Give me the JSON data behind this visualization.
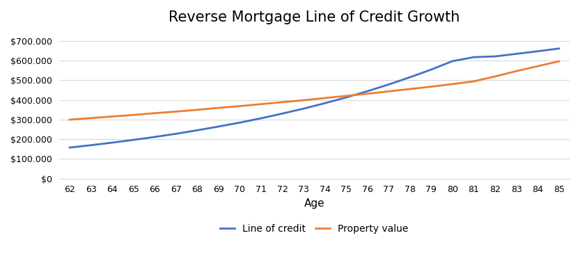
{
  "title": "Reverse Mortgage Line of Credit Growth",
  "xlabel": "Age",
  "ages": [
    62,
    63,
    64,
    65,
    66,
    67,
    68,
    69,
    70,
    71,
    72,
    73,
    74,
    75,
    76,
    77,
    78,
    79,
    80,
    81,
    82,
    83,
    84,
    85
  ],
  "line_of_credit": [
    158000,
    170000,
    183000,
    197000,
    212000,
    228000,
    246000,
    265000,
    285000,
    307000,
    331000,
    356000,
    384000,
    413000,
    445000,
    479000,
    516000,
    555000,
    598000,
    618000,
    622000,
    635000,
    648000,
    662000
  ],
  "property_value": [
    300000,
    308000,
    316000,
    324000,
    333000,
    341000,
    350000,
    360000,
    369000,
    379000,
    389000,
    399000,
    410000,
    421000,
    432000,
    444000,
    456000,
    468000,
    481000,
    495000,
    520000,
    547000,
    572000,
    597000
  ],
  "loc_color": "#4472c4",
  "pv_color": "#ed7d31",
  "loc_label": "Line of credit",
  "pv_label": "Property value",
  "ylim": [
    0,
    750000
  ],
  "yticks": [
    0,
    100000,
    200000,
    300000,
    400000,
    500000,
    600000,
    700000
  ],
  "ytick_labels": [
    "$0",
    "$100.000",
    "$200.000",
    "$300.000",
    "$400.000",
    "$500.000",
    "$600.000",
    "$700.000"
  ],
  "background_color": "#ffffff",
  "grid_color": "#d9d9d9",
  "line_width": 2.0,
  "title_fontsize": 15,
  "legend_fontsize": 10,
  "tick_fontsize": 9
}
